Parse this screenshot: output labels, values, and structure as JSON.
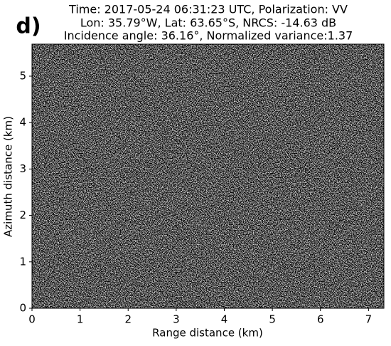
{
  "chart_data": {
    "type": "image",
    "panel_label": "d)",
    "title": [
      "Time: 2017-05-24 06:31:23 UTC, Polarization: VV",
      "Lon: 35.79°W, Lat: 63.65°S, NRCS: -14.63 dB",
      "Incidence angle: 36.16°, Normalized variance:1.37"
    ],
    "x_label": "Range distance (km)",
    "y_label": "Azimuth distance (km)",
    "xlim": [
      0,
      7.32
    ],
    "xticks": [
      0,
      1,
      2,
      3,
      4,
      5,
      6,
      7
    ],
    "ylim": [
      0,
      5.69
    ],
    "yticks": [
      0,
      1,
      2,
      3,
      4,
      5
    ]
  }
}
